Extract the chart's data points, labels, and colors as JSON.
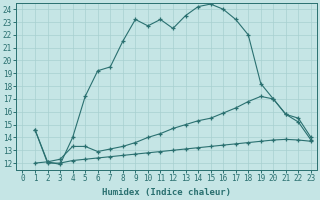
{
  "xlabel": "Humidex (Indice chaleur)",
  "bg_color": "#c5e5e5",
  "line_color": "#2a7070",
  "grid_color": "#a8d0d0",
  "xlim": [
    -0.5,
    23.5
  ],
  "ylim": [
    11.5,
    24.5
  ],
  "yticks": [
    12,
    13,
    14,
    15,
    16,
    17,
    18,
    19,
    20,
    21,
    22,
    23,
    24
  ],
  "xticks": [
    0,
    1,
    2,
    3,
    4,
    5,
    6,
    7,
    8,
    9,
    10,
    11,
    12,
    13,
    14,
    15,
    16,
    17,
    18,
    19,
    20,
    21,
    22,
    23
  ],
  "line1_x": [
    1,
    2,
    3,
    4,
    5,
    6,
    7,
    8,
    9,
    10,
    11,
    12,
    13,
    14,
    15,
    16,
    17,
    18,
    19,
    20,
    21,
    22,
    23
  ],
  "line1_y": [
    12.0,
    12.1,
    11.9,
    14.0,
    17.2,
    19.2,
    19.5,
    21.5,
    23.2,
    22.7,
    23.2,
    22.5,
    23.5,
    24.2,
    24.4,
    24.0,
    23.2,
    22.0,
    18.2,
    17.0,
    15.8,
    15.2,
    13.8
  ],
  "line2_x": [
    1,
    2,
    3,
    4,
    5,
    6,
    7,
    8,
    9,
    10,
    11,
    12,
    13,
    14,
    15,
    16,
    17,
    18,
    19,
    20,
    21,
    22,
    23
  ],
  "line2_y": [
    14.6,
    12.1,
    12.3,
    13.3,
    13.3,
    12.9,
    13.1,
    13.3,
    13.6,
    14.0,
    14.3,
    14.7,
    15.0,
    15.3,
    15.5,
    15.9,
    16.3,
    16.8,
    17.2,
    17.0,
    15.8,
    15.5,
    14.0
  ],
  "line3_x": [
    1,
    2,
    3,
    4,
    5,
    6,
    7,
    8,
    9,
    10,
    11,
    12,
    13,
    14,
    15,
    16,
    17,
    18,
    19,
    20,
    21,
    22,
    23
  ],
  "line3_y": [
    14.6,
    12.0,
    12.0,
    12.2,
    12.3,
    12.4,
    12.5,
    12.6,
    12.7,
    12.8,
    12.9,
    13.0,
    13.1,
    13.2,
    13.3,
    13.4,
    13.5,
    13.6,
    13.7,
    13.8,
    13.85,
    13.8,
    13.7
  ]
}
